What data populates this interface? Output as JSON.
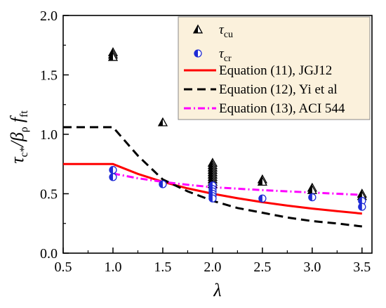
{
  "chart_data": {
    "type": "scatter",
    "xlabel": "λ",
    "ylabel_main": "τ",
    "ylabel_sub": "c*",
    "ylabel_mid": "/β",
    "ylabel_sub2": "ρ",
    "ylabel_f": "f",
    "ylabel_sub3": "ft",
    "xlim": [
      0.5,
      3.6
    ],
    "ylim": [
      0.0,
      2.0
    ],
    "x_ticks": [
      "0.5",
      "1.0",
      "1.5",
      "2.0",
      "2.5",
      "3.0",
      "3.5"
    ],
    "y_ticks": [
      "0.0",
      "0.5",
      "1.0",
      "1.5",
      "2.0"
    ],
    "grid": false,
    "legend_position": "top-right",
    "scatter_series": [
      {
        "name": "τ",
        "name_sub": "cu",
        "marker": "half-triangle",
        "color": "#000000",
        "points": [
          [
            1.0,
            1.69
          ],
          [
            1.0,
            1.67
          ],
          [
            1.0,
            1.65
          ],
          [
            1.5,
            1.1
          ],
          [
            2.0,
            0.76
          ],
          [
            2.0,
            0.74
          ],
          [
            2.0,
            0.72
          ],
          [
            2.0,
            0.7
          ],
          [
            2.0,
            0.68
          ],
          [
            2.0,
            0.66
          ],
          [
            2.0,
            0.64
          ],
          [
            2.0,
            0.62
          ],
          [
            2.0,
            0.6
          ],
          [
            2.0,
            0.58
          ],
          [
            2.5,
            0.62
          ],
          [
            2.5,
            0.6
          ],
          [
            3.0,
            0.55
          ],
          [
            3.0,
            0.53
          ],
          [
            3.5,
            0.5
          ],
          [
            3.5,
            0.48
          ]
        ]
      },
      {
        "name": "τ",
        "name_sub": "cr",
        "marker": "half-circle",
        "color": "#1f2bd6",
        "points": [
          [
            1.0,
            0.7
          ],
          [
            1.0,
            0.64
          ],
          [
            1.5,
            0.58
          ],
          [
            2.0,
            0.57
          ],
          [
            2.0,
            0.54
          ],
          [
            2.0,
            0.52
          ],
          [
            2.0,
            0.5
          ],
          [
            2.0,
            0.48
          ],
          [
            2.0,
            0.46
          ],
          [
            2.5,
            0.46
          ],
          [
            3.0,
            0.47
          ],
          [
            3.5,
            0.44
          ],
          [
            3.5,
            0.39
          ]
        ]
      }
    ],
    "line_series": [
      {
        "name": "Equation (11), JGJ12",
        "color": "#ff0000",
        "dash": "solid",
        "points": [
          [
            0.5,
            0.75
          ],
          [
            1.0,
            0.75
          ],
          [
            1.25,
            0.667
          ],
          [
            1.5,
            0.6
          ],
          [
            1.75,
            0.545
          ],
          [
            2.0,
            0.5
          ],
          [
            2.25,
            0.462
          ],
          [
            2.5,
            0.429
          ],
          [
            2.75,
            0.4
          ],
          [
            3.0,
            0.375
          ],
          [
            3.25,
            0.353
          ],
          [
            3.5,
            0.333
          ]
        ]
      },
      {
        "name": "Equation (12), Yi et al",
        "color": "#000000",
        "dash": "dashed",
        "points": [
          [
            0.5,
            1.06
          ],
          [
            1.0,
            1.06
          ],
          [
            1.25,
            0.82
          ],
          [
            1.5,
            0.62
          ],
          [
            1.75,
            0.52
          ],
          [
            2.0,
            0.44
          ],
          [
            2.25,
            0.38
          ],
          [
            2.5,
            0.34
          ],
          [
            2.75,
            0.3
          ],
          [
            3.0,
            0.27
          ],
          [
            3.25,
            0.25
          ],
          [
            3.5,
            0.225
          ]
        ]
      },
      {
        "name": "Equation (13), ACI 544",
        "color": "#ff00ff",
        "dash": "dashdot",
        "points": [
          [
            1.0,
            0.67
          ],
          [
            1.25,
            0.63
          ],
          [
            1.5,
            0.6
          ],
          [
            1.75,
            0.575
          ],
          [
            2.0,
            0.555
          ],
          [
            2.5,
            0.53
          ],
          [
            3.0,
            0.51
          ],
          [
            3.5,
            0.49
          ]
        ]
      }
    ]
  }
}
